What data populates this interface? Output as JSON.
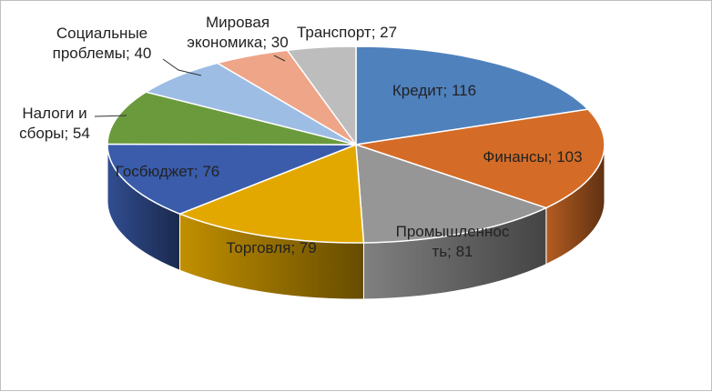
{
  "chart_data": {
    "type": "pie",
    "subtype": "3d-pie",
    "legend": "none",
    "slices": [
      {
        "label": "Кредит",
        "value": 116,
        "color": "#4f81bd",
        "text": [
          "Кредит; 116"
        ]
      },
      {
        "label": "Финансы",
        "value": 103,
        "color": "#d46c27",
        "text": [
          "Финансы; 103"
        ]
      },
      {
        "label": "Промышленность",
        "value": 81,
        "color": "#969696",
        "text": [
          "Промышленнос",
          "ть; 81"
        ]
      },
      {
        "label": "Торговля",
        "value": 79,
        "color": "#e3a800",
        "text": [
          "Торговля; 79"
        ]
      },
      {
        "label": "Госбюджет",
        "value": 76,
        "color": "#3a5cab",
        "text": [
          "Госбюджет; 76"
        ]
      },
      {
        "label": "Налоги и сборы",
        "value": 54,
        "color": "#6a9a3c",
        "text": [
          "Налоги и",
          "сборы; 54"
        ]
      },
      {
        "label": "Социальные проблемы",
        "value": 40,
        "color": "#9dbde4",
        "text": [
          "Социальные",
          "проблемы; 40"
        ]
      },
      {
        "label": "Мировая экономика",
        "value": 30,
        "color": "#eea588",
        "text": [
          "Мировая",
          "экономика; 30"
        ]
      },
      {
        "label": "Транспорт",
        "value": 27,
        "color": "#bdbdbd",
        "text": [
          "Транспорт; 27"
        ]
      }
    ]
  }
}
